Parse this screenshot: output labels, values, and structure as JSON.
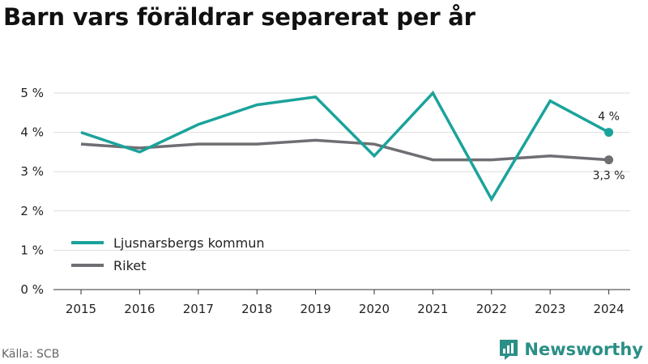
{
  "title": "Barn vars föräldrar separerat per år",
  "source": "Källa: SCB",
  "brand": {
    "name": "Newsworthy",
    "icon": "newsworthy-logo-icon",
    "color": "#2a8f86"
  },
  "chart_data": {
    "type": "line",
    "x": [
      "2015",
      "2016",
      "2017",
      "2018",
      "2019",
      "2020",
      "2021",
      "2022",
      "2023",
      "2024"
    ],
    "yticks": [
      "0 %",
      "1 %",
      "2 %",
      "3 %",
      "4 %",
      "5 %"
    ],
    "ylim": [
      0,
      5
    ],
    "grid": true,
    "legend_position": "bottom-left",
    "series": [
      {
        "name": "Ljusnarsbergs kommun",
        "color": "#1aa39b",
        "values": [
          4.0,
          3.5,
          4.2,
          4.7,
          4.9,
          3.4,
          5.0,
          2.3,
          4.8,
          4.0
        ],
        "end_label": "4 %"
      },
      {
        "name": "Riket",
        "color": "#6e6e73",
        "values": [
          3.7,
          3.6,
          3.7,
          3.7,
          3.8,
          3.7,
          3.3,
          3.3,
          3.4,
          3.3
        ],
        "end_label": "3,3 %"
      }
    ]
  }
}
